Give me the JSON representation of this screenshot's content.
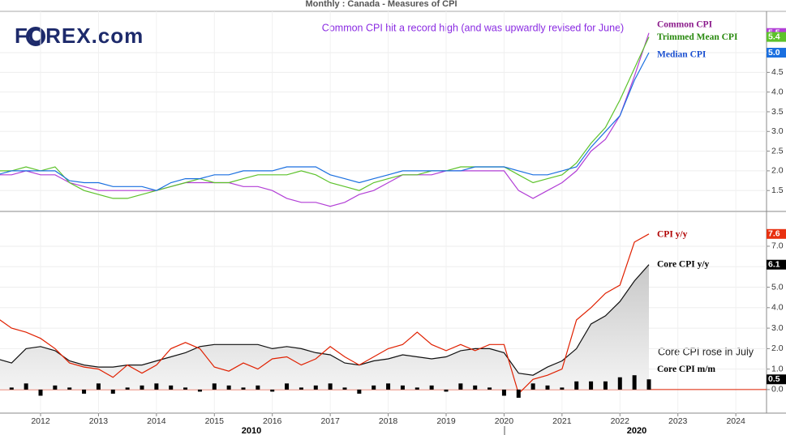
{
  "title": "Monthly : Canada - Measures of CPI",
  "logo": "FOREX.com",
  "chart_data": [
    {
      "type": "line",
      "annotation": "Common CPI hit a record high (and was upwardly revised for June)",
      "x": [
        2011.25,
        2011.5,
        2011.75,
        2012,
        2012.25,
        2012.5,
        2012.75,
        2013,
        2013.25,
        2013.5,
        2013.75,
        2014,
        2014.25,
        2014.5,
        2014.75,
        2015,
        2015.25,
        2015.5,
        2015.75,
        2016,
        2016.25,
        2016.5,
        2016.75,
        2017,
        2017.25,
        2017.5,
        2017.75,
        2018,
        2018.25,
        2018.5,
        2018.75,
        2019,
        2019.25,
        2019.5,
        2019.75,
        2020,
        2020.25,
        2020.5,
        2020.75,
        2021,
        2021.25,
        2021.5,
        2021.75,
        2022,
        2022.25,
        2022.5
      ],
      "xlim": [
        2011.3,
        2024.53
      ],
      "ylim": [
        0.99,
        6.05
      ],
      "yticks": [
        1.5,
        {
          "value": 2,
          "label": "2.0"
        },
        2.5,
        {
          "value": 3,
          "label": "3.0"
        },
        3.5,
        {
          "value": 4,
          "label": "4.0"
        },
        4.5,
        {
          "value": 5,
          "label": "5.0"
        }
      ],
      "grid": true,
      "series": [
        {
          "name": "Common CPI",
          "color": "#b23fd6",
          "label_color": "#8b1a8b",
          "end_label": "5.5",
          "values": [
            1.9,
            1.9,
            2.0,
            1.9,
            1.9,
            1.7,
            1.6,
            1.5,
            1.5,
            1.5,
            1.5,
            1.5,
            1.6,
            1.7,
            1.7,
            1.7,
            1.7,
            1.6,
            1.6,
            1.5,
            1.3,
            1.2,
            1.2,
            1.1,
            1.2,
            1.4,
            1.5,
            1.7,
            1.9,
            1.9,
            1.9,
            2.0,
            2.0,
            2.0,
            2.0,
            2.0,
            1.5,
            1.3,
            1.5,
            1.7,
            2.0,
            2.5,
            2.8,
            3.4,
            4.4,
            5.5
          ]
        },
        {
          "name": "Trimmed Mean CPI",
          "color": "#5cc22a",
          "label_color": "#2a8a10",
          "end_label": "5.4",
          "values": [
            2.0,
            2.0,
            2.1,
            2.0,
            2.1,
            1.7,
            1.5,
            1.4,
            1.3,
            1.3,
            1.4,
            1.5,
            1.6,
            1.7,
            1.8,
            1.7,
            1.7,
            1.8,
            1.9,
            1.9,
            1.9,
            2.0,
            1.9,
            1.7,
            1.6,
            1.5,
            1.7,
            1.8,
            1.9,
            1.9,
            2.0,
            2.0,
            2.1,
            2.1,
            2.1,
            2.1,
            1.9,
            1.7,
            1.8,
            1.9,
            2.2,
            2.7,
            3.1,
            3.8,
            4.6,
            5.4
          ]
        },
        {
          "name": "Median CPI",
          "color": "#1a6fe0",
          "label_color": "#1a4fd0",
          "end_label": "5.0",
          "values": [
            1.9,
            2.0,
            2.0,
            2.0,
            2.0,
            1.75,
            1.7,
            1.7,
            1.6,
            1.6,
            1.6,
            1.5,
            1.7,
            1.8,
            1.8,
            1.9,
            1.9,
            2.0,
            2.0,
            2.0,
            2.1,
            2.1,
            2.1,
            1.9,
            1.8,
            1.7,
            1.8,
            1.9,
            2.0,
            2.0,
            2.0,
            2.0,
            2.0,
            2.1,
            2.1,
            2.1,
            2.0,
            1.9,
            1.9,
            2.0,
            2.1,
            2.6,
            3.0,
            3.4,
            4.3,
            5.0
          ]
        }
      ]
    },
    {
      "type": "combo",
      "annotation": "Core CPI rose in July",
      "x": [
        2011.25,
        2011.5,
        2011.75,
        2012,
        2012.25,
        2012.5,
        2012.75,
        2013,
        2013.25,
        2013.5,
        2013.75,
        2014,
        2014.25,
        2014.5,
        2014.75,
        2015,
        2015.25,
        2015.5,
        2015.75,
        2016,
        2016.25,
        2016.5,
        2016.75,
        2017,
        2017.25,
        2017.5,
        2017.75,
        2018,
        2018.25,
        2018.5,
        2018.75,
        2019,
        2019.25,
        2019.5,
        2019.75,
        2020,
        2020.25,
        2020.5,
        2020.75,
        2021,
        2021.25,
        2021.5,
        2021.75,
        2022,
        2022.25,
        2022.5
      ],
      "xlim": [
        2011.3,
        2024.53
      ],
      "xticks": [
        2012,
        2013,
        2014,
        2015,
        2016,
        2017,
        2018,
        2019,
        2020,
        2021,
        2022,
        2023,
        2024
      ],
      "decade_labels": [
        "2010",
        "2020"
      ],
      "ylim": [
        -1.15,
        8.66
      ],
      "yticks": [
        {
          "value": 0,
          "label": "0.0"
        },
        {
          "value": 1,
          "label": "1.0"
        },
        {
          "value": 2,
          "label": "2.0"
        },
        {
          "value": 3,
          "label": "3.0"
        },
        {
          "value": 4,
          "label": "4.0"
        },
        {
          "value": 5,
          "label": "5.0"
        },
        {
          "value": 6,
          "label": "6.0"
        },
        {
          "value": 7,
          "label": "7.0"
        }
      ],
      "grid": true,
      "series": [
        {
          "name": "CPI y/y",
          "type": "line",
          "color": "#e02000",
          "label_color": "#b00000",
          "tag_color": "#e83010",
          "end_label": "7.6",
          "values": [
            3.5,
            3.0,
            2.8,
            2.5,
            2.0,
            1.3,
            1.1,
            1.0,
            0.6,
            1.2,
            0.8,
            1.2,
            2.0,
            2.3,
            2.0,
            1.1,
            0.9,
            1.3,
            1.0,
            1.5,
            1.6,
            1.2,
            1.5,
            2.1,
            1.6,
            1.2,
            1.6,
            2.0,
            2.2,
            2.8,
            2.2,
            1.9,
            2.2,
            1.9,
            2.2,
            2.2,
            -0.2,
            0.5,
            0.7,
            1.0,
            3.4,
            4.0,
            4.7,
            5.1,
            7.2,
            7.6
          ]
        },
        {
          "name": "Core CPI y/y",
          "type": "area",
          "color": "#111111",
          "label_color": "#000000",
          "tag_color": "#000000",
          "end_label": "6.1",
          "values": [
            1.5,
            1.3,
            2.0,
            2.1,
            1.9,
            1.4,
            1.2,
            1.1,
            1.1,
            1.2,
            1.2,
            1.4,
            1.6,
            1.8,
            2.1,
            2.2,
            2.2,
            2.2,
            2.2,
            2.0,
            2.1,
            2.0,
            1.8,
            1.7,
            1.3,
            1.2,
            1.4,
            1.5,
            1.7,
            1.6,
            1.5,
            1.6,
            1.9,
            2.0,
            2.0,
            1.8,
            0.8,
            0.7,
            1.1,
            1.4,
            2.0,
            3.2,
            3.6,
            4.3,
            5.3,
            6.1
          ]
        },
        {
          "name": "Core CPI m/m",
          "type": "bar",
          "color": "#000000",
          "label_color": "#000000",
          "tag_color": "#000000",
          "end_label": "0.5",
          "values": [
            0.3,
            0.1,
            0.3,
            -0.3,
            0.2,
            0.1,
            -0.2,
            0.3,
            -0.2,
            0.1,
            0.2,
            0.3,
            0.2,
            0.1,
            -0.1,
            0.3,
            0.2,
            0.1,
            0.2,
            -0.1,
            0.3,
            0.1,
            0.2,
            0.3,
            0.1,
            -0.2,
            0.2,
            0.3,
            0.2,
            0.1,
            0.2,
            -0.1,
            0.3,
            0.2,
            0.1,
            -0.3,
            -0.4,
            0.3,
            0.2,
            0.1,
            0.4,
            0.4,
            0.4,
            0.6,
            0.7,
            0.5
          ]
        }
      ]
    }
  ]
}
